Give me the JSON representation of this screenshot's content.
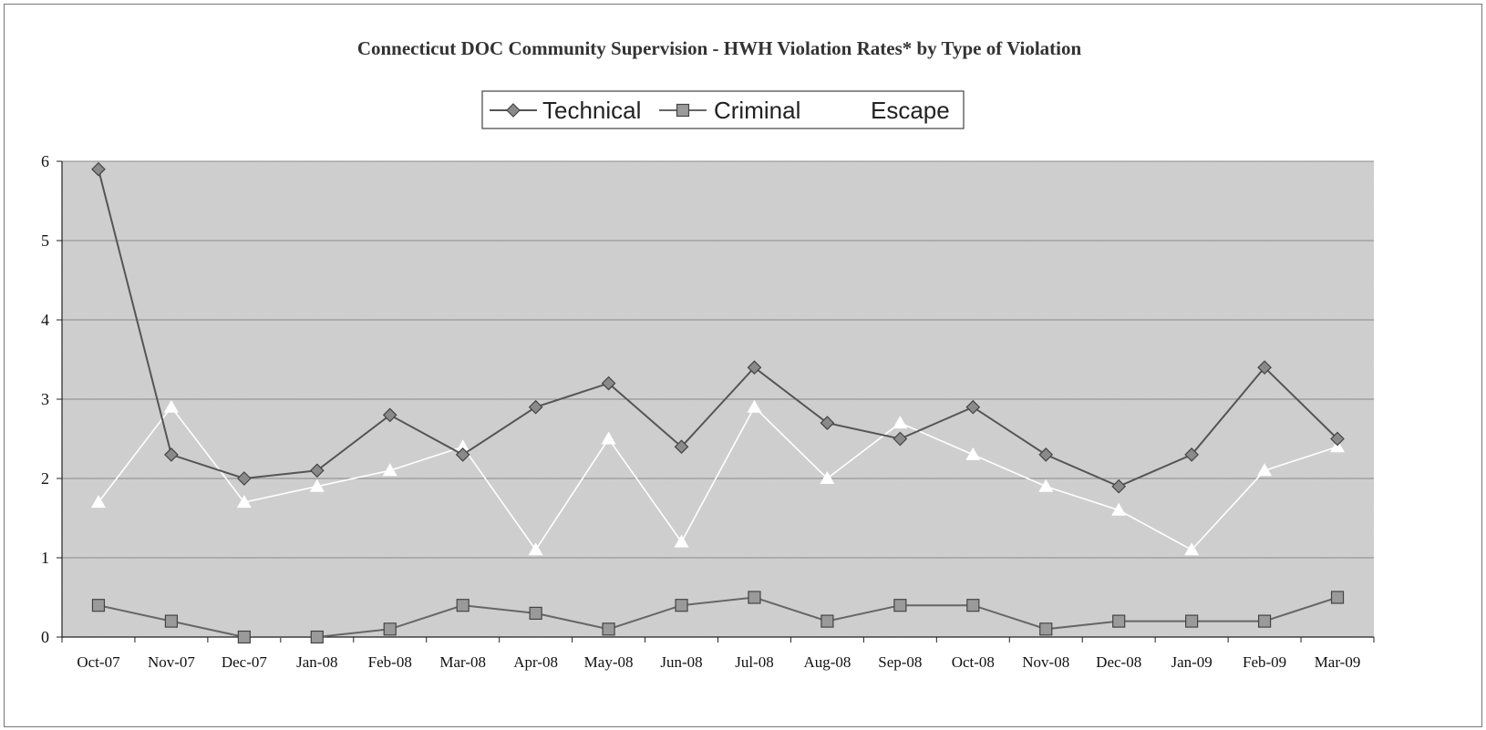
{
  "chart_data": {
    "type": "line",
    "title": "Connecticut DOC Community Supervision - HWH Violation Rates* by Type of Violation",
    "xlabel": "",
    "ylabel": "",
    "ylim": [
      0,
      6
    ],
    "yticks": [
      0,
      1,
      2,
      3,
      4,
      5,
      6
    ],
    "grid": true,
    "legend_position": "top-center",
    "categories": [
      "Oct-07",
      "Nov-07",
      "Dec-07",
      "Jan-08",
      "Feb-08",
      "Mar-08",
      "Apr-08",
      "May-08",
      "Jun-08",
      "Jul-08",
      "Aug-08",
      "Sep-08",
      "Oct-08",
      "Nov-08",
      "Dec-08",
      "Jan-09",
      "Feb-09",
      "Mar-09"
    ],
    "series": [
      {
        "name": "Technical",
        "marker": "diamond",
        "color": "#8a8a8a",
        "line_color": "#555555",
        "values": [
          5.9,
          2.3,
          2.0,
          2.1,
          2.8,
          2.3,
          2.9,
          3.2,
          2.4,
          3.4,
          2.7,
          2.5,
          2.9,
          2.3,
          1.9,
          2.3,
          3.4,
          2.5
        ]
      },
      {
        "name": "Criminal",
        "marker": "square",
        "color": "#9a9a9a",
        "line_color": "#666666",
        "values": [
          0.4,
          0.2,
          0.0,
          0.0,
          0.1,
          0.4,
          0.3,
          0.1,
          0.4,
          0.5,
          0.2,
          0.4,
          0.4,
          0.1,
          0.2,
          0.2,
          0.2,
          0.5
        ]
      },
      {
        "name": "Escape",
        "marker": "triangle",
        "color": "#ffffff",
        "line_color": "#ffffff",
        "values": [
          1.7,
          2.9,
          1.7,
          1.9,
          2.1,
          2.4,
          1.1,
          2.5,
          1.2,
          2.9,
          2.0,
          2.7,
          2.3,
          1.9,
          1.6,
          1.1,
          2.1,
          2.4
        ]
      }
    ]
  }
}
